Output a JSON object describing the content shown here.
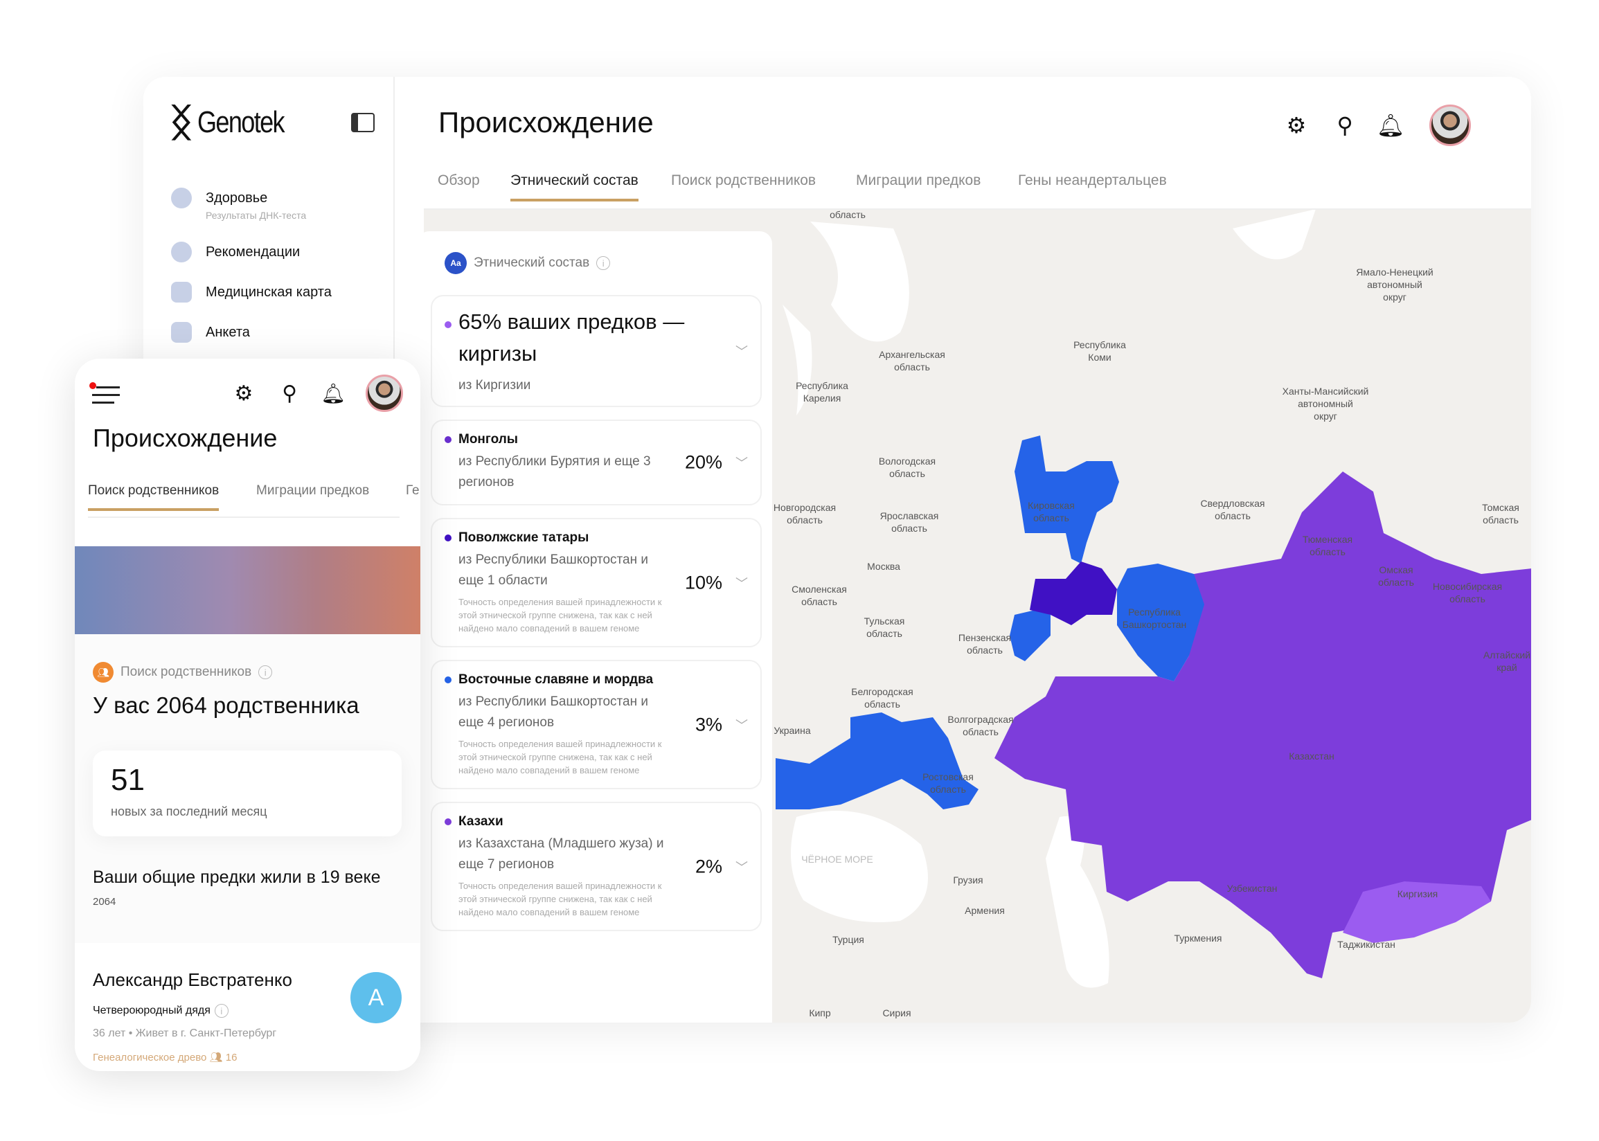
{
  "app": {
    "brand": "Genotek"
  },
  "sidebar": {
    "items": [
      {
        "label": "Здоровье",
        "sub": "Результаты ДНК-теста"
      },
      {
        "label": "Рекомендации"
      },
      {
        "label": "Медицинская карта"
      },
      {
        "label": "Анкета"
      }
    ]
  },
  "header": {
    "title": "Происхождение",
    "tabs": [
      "Обзор",
      "Этнический состав",
      "Поиск родственников",
      "Миграции предков",
      "Гены неандертальцев"
    ],
    "active_tab": "Этнический состав"
  },
  "panel": {
    "title": "Этнический состав",
    "badge": "Aa",
    "headline": "65% ваших предков — киргизы",
    "headline_from": "из Киргизии",
    "groups": [
      {
        "name": "Монголы",
        "from": "из Республики Бурятия и еще 3 регионов",
        "pct": "20%",
        "color": "#6a2fd0"
      },
      {
        "name": "Поволжские татары",
        "from": "из Республики Башкортостан и еще 1 области",
        "pct": "10%",
        "note": "Точность определения вашей принадлежности к этой этнической группе снижена, так как с ней найдено мало совпадений в вашем геноме",
        "color": "#4011c4"
      },
      {
        "name": "Восточные славяне и мордва",
        "from": "из Республики Башкортостан и еще 4 регионов",
        "pct": "3%",
        "note": "Точность определения вашей принадлежности к этой этнической группе снижена, так как с ней найдено мало совпадений в вашем геноме",
        "color": "#2563e8"
      },
      {
        "name": "Казахи",
        "from": "из Казахстана (Младшего жуза) и еще 7 регионов",
        "pct": "2%",
        "note": "Точность определения вашей принадлежности к этой этнической группе снижена, так как с ней найдено мало совпадений в вашем геноме",
        "color": "#7d3ddb"
      }
    ],
    "headline_color": "#9b5cf0"
  },
  "map": {
    "labels": [
      "область",
      "Ямало-Ненецкий автономный округ",
      "Республика Коми",
      "Архангельская область",
      "Республика Карелия",
      "Ханты-Мансийский автономный округ",
      "Вологодская область",
      "Кировская область",
      "Свердловская область",
      "Томская область",
      "Новгородская область",
      "Ярославская область",
      "Тюменская область",
      "Москва",
      "Омская область",
      "Новосибирская область",
      "Смоленская область",
      "Республика Башкортостан",
      "Тульская область",
      "Пензенская область",
      "Алтайский край",
      "Белгородская область",
      "Волгоградская область",
      "Украина",
      "Казахстан",
      "Ростовская область",
      "ЧЁРНОЕ МОРЕ",
      "Грузия",
      "Армения",
      "Узбекистан",
      "Киргизия",
      "Турция",
      "Туркмения",
      "Таджикистан",
      "Кипр",
      "Сирия"
    ],
    "colors": {
      "background": "#f2f0ed",
      "blue": "#2563e8",
      "purple": "#7d3ddb",
      "dark_purple": "#4011c4",
      "light_purple": "#9b5cf0"
    }
  },
  "mobile": {
    "title": "Происхождение",
    "tabs": [
      "Поиск родственников",
      "Миграции предков",
      "Ге"
    ],
    "section": "Поиск родственников",
    "relatives": "У вас 2064 родственника",
    "new_count": "51",
    "new_label": "новых за последний месяц",
    "ancestors": "Ваши общие предки жили в 19 веке",
    "ancestors_count": "2064",
    "person": {
      "name": "Александр Евстратенко",
      "initial": "А",
      "relation": "Четвероюродный дядя",
      "age": "36 лет",
      "city": "Живет в г. Санкт-Петербург",
      "tree": "Генеалогическое древо",
      "tree_count": "16"
    }
  }
}
